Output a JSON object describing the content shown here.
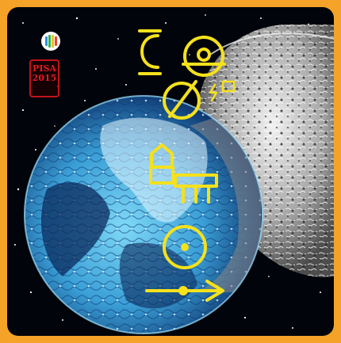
{
  "stamp": {
    "text": "PISA 2015"
  },
  "app_icon": {
    "icon": "rainbow-bars-icon"
  },
  "colors": {
    "frame": "#f4a228",
    "space": "#02040b",
    "earth_light": "#5fc7ee",
    "earth_dark": "#0b2a5c",
    "moon": "#c9c9c9",
    "symbol": "#f5e11c",
    "seal": "#e21b23"
  },
  "symbols": [
    {
      "name": "crescent-glyph-icon"
    },
    {
      "name": "circle-target-glyph-icon"
    },
    {
      "name": "no-entry-glyph-icon"
    },
    {
      "name": "lightning-glyph-icon"
    },
    {
      "name": "house-glyph-icon"
    },
    {
      "name": "table-glyph-icon"
    },
    {
      "name": "sun-glyph-icon"
    },
    {
      "name": "arrow-glyph-icon"
    }
  ]
}
